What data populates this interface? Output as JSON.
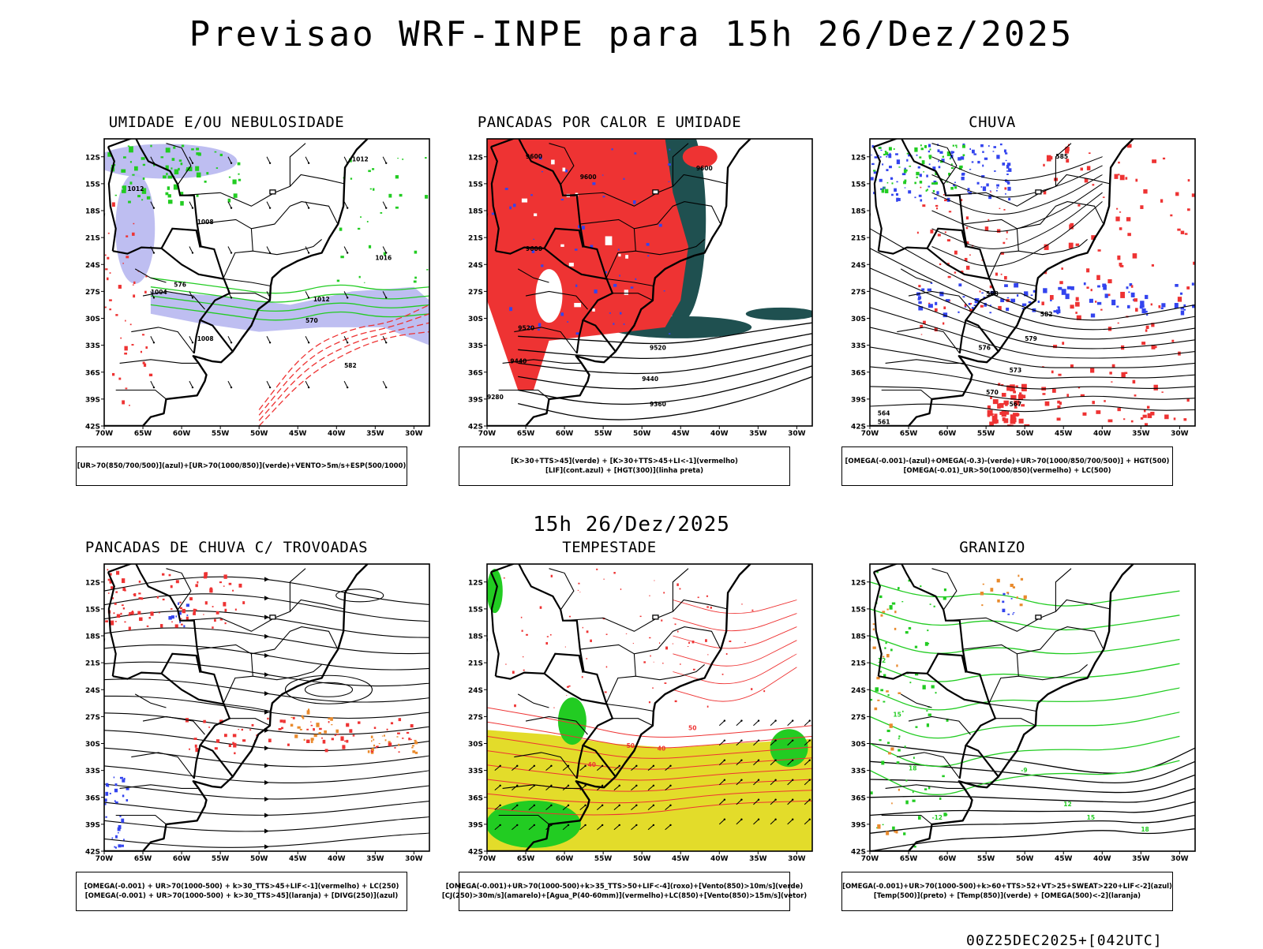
{
  "title": "Previsao WRF-INPE  para 15h 26/Dez/2025",
  "mid_title": "15h 26/Dez/2025",
  "footer": "00Z25DEC2025+[042UTC]",
  "lat_ticks": [
    "12S",
    "15S",
    "18S",
    "21S",
    "24S",
    "27S",
    "30S",
    "33S",
    "36S",
    "39S",
    "42S"
  ],
  "lon_ticks": [
    "70W",
    "65W",
    "60W",
    "55W",
    "50W",
    "45W",
    "40W",
    "35W",
    "30W"
  ],
  "panels": [
    {
      "title": "UMIDADE E/OU NEBULOSIDADE",
      "legend": [
        "[UR>70(850/700/500)](azul)+[UR>70(1000/850)](verde)+VENTO>5m/s+ESP(500/1000)"
      ],
      "labels": [
        "1012",
        "1008",
        "1004",
        "1012",
        "1016",
        "1012",
        "570",
        "576",
        "582",
        "1008"
      ]
    },
    {
      "title": "PANCADAS POR CALOR E UMIDADE",
      "legend": [
        "[K>30+TTS>45](verde) + [K>30+TTS>45+LI<-1](vermelho)",
        "[LIF](cont.azul) + [HGT(300)](linha preta)"
      ],
      "labels": [
        "9600",
        "9600",
        "9600",
        "9520",
        "9520",
        "9440",
        "9440",
        "9360",
        "9280",
        "9600"
      ]
    },
    {
      "title": "CHUVA",
      "legend": [
        "[OMEGA(-0.001)-(azul)+OMEGA(-0.3)-(verde)+UR>70(1000/850/700/500)] + HGT(500)",
        "[OMEGA(-0.01)_UR>50(1000/850)(vermelho) + LC(500)"
      ],
      "labels": [
        "585",
        "582",
        "579",
        "576",
        "573",
        "570",
        "567",
        "564",
        "561",
        "588"
      ]
    },
    {
      "title": "PANCADAS DE CHUVA C/ TROVOADAS",
      "legend": [
        "[OMEGA(-0.001) + UR>70(1000-500) + k>30_TTS>45+LIF<-1](vermelho) + LC(250)",
        "[OMEGA(-0.001) + UR>70(1000-500) + k>30_TTS>45](laranja) + [DIVG(250)](azul)"
      ],
      "labels": []
    },
    {
      "title": "TEMPESTADE",
      "legend": [
        "[OMEGA(-0.001)+UR>70(1000-500)+k>35_TTS>50+LIF<-4](roxo)+[Vento(850)>10m/s](verde)",
        "[CJ(250)>30m/s](amarelo)+[Agua_P(40-60mm)](vermelho)+LC(850)+[Vento(850)>15m/s](vetor)"
      ],
      "labels": [
        "50",
        "40",
        "50",
        "40"
      ]
    },
    {
      "title": "GRANIZO",
      "legend": [
        "[OMEGA(-0.001)+UR>70(1000-500)+k>60+TTS>52+VT>25+SWEAT>220+LIF<-2](azul)",
        "[Temp(500)](preto) + [Temp(850)](verde) + [OMEGA(500)<-2](laranja)"
      ],
      "labels": [
        "12",
        "15",
        "18",
        "-12",
        "-9",
        "12",
        "15",
        "18"
      ]
    }
  ],
  "colors": {
    "blue_fill": "#b7b7f0",
    "green_line": "#22cc22",
    "red": "#ee3333",
    "dark_teal": "#1f5050",
    "blue_line": "#3344ee",
    "yellow": "#e3dc2a",
    "orange": "#e98a2c",
    "black": "#000000"
  }
}
